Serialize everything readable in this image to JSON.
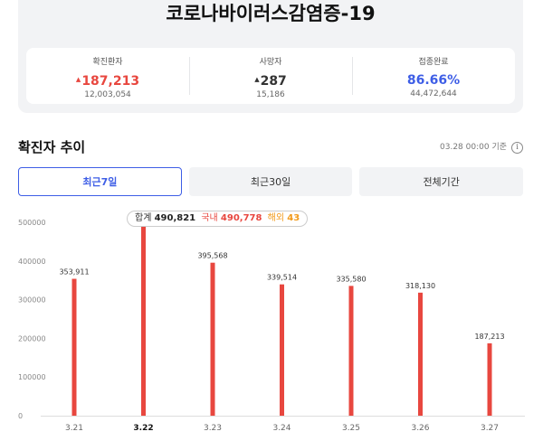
{
  "page_title": "코로나바이러스감염증-19",
  "stats": [
    {
      "label": "확진환자",
      "value": "187,213",
      "sub": "12,003,054",
      "arrow": "▲"
    },
    {
      "label": "사망자",
      "value": "287",
      "sub": "15,186",
      "arrow": "▲"
    },
    {
      "label": "접종완료",
      "value": "86.66%",
      "sub": "44,472,644",
      "arrow": ""
    }
  ],
  "trend": {
    "title": "확진자 추이",
    "basis": "03.28 00:00 기준",
    "info_icon": "i"
  },
  "tabs": [
    {
      "label": "최근7일",
      "active": true
    },
    {
      "label": "최근30일",
      "active": false
    },
    {
      "label": "전체기간",
      "active": false
    }
  ],
  "tooltip": {
    "total_label": "합계",
    "total": "490,821",
    "domestic_label": "국내",
    "domestic": "490,778",
    "overseas_label": "해외",
    "overseas": "43"
  },
  "colors": {
    "bar": "#e8473f",
    "accent_blue": "#3e5ee6",
    "overseas": "#f29a1a"
  },
  "chart_data": {
    "type": "bar",
    "categories": [
      "3.21",
      "3.22",
      "3.23",
      "3.24",
      "3.25",
      "3.26",
      "3.27"
    ],
    "values": [
      353911,
      490821,
      395568,
      339514,
      335580,
      318130,
      187213
    ],
    "value_labels": [
      "353,911",
      "490,821",
      "395,568",
      "339,514",
      "335,580",
      "318,130",
      "187,213"
    ],
    "selected_index": 1,
    "yticks": [
      0,
      100000,
      200000,
      300000,
      400000,
      500000
    ],
    "ytick_labels": [
      "0",
      "100000",
      "200000",
      "300000",
      "400000",
      "500000"
    ],
    "ylim": [
      0,
      500000
    ],
    "grid": false
  }
}
